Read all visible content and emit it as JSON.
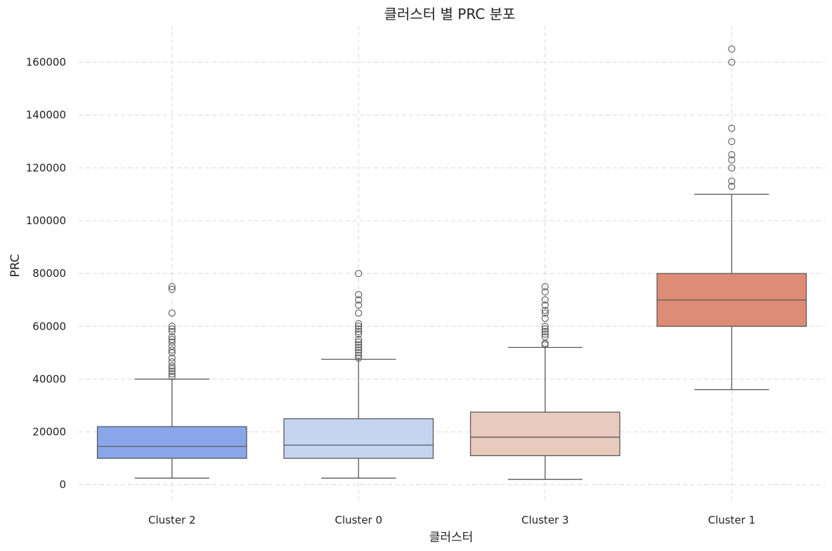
{
  "chart_data": {
    "type": "box",
    "title": "클러스터 별 PRC 분포",
    "xlabel": "클러스터",
    "ylabel": "PRC",
    "ylim": [
      -7000,
      174000
    ],
    "yticks": [
      0,
      20000,
      40000,
      60000,
      80000,
      100000,
      120000,
      140000,
      160000
    ],
    "ytick_labels": [
      "0",
      "20000",
      "40000",
      "60000",
      "80000",
      "100000",
      "120000",
      "140000",
      "160000"
    ],
    "grid": true,
    "categories": [
      "Cluster 2",
      "Cluster 0",
      "Cluster 3",
      "Cluster 1"
    ],
    "series": [
      {
        "category": "Cluster 2",
        "color": "#8aa6eb",
        "whisker_low": 2500,
        "q1": 10000,
        "median": 14500,
        "q3": 22000,
        "whisker_high": 40000,
        "outliers": [
          41000,
          42000,
          43000,
          44000,
          45000,
          46500,
          48000,
          50000,
          51000,
          52500,
          54000,
          55000,
          56000,
          58000,
          59000,
          60000,
          65000,
          74000,
          75000
        ]
      },
      {
        "category": "Cluster 0",
        "color": "#c5d5f0",
        "whisker_low": 2500,
        "q1": 10000,
        "median": 15000,
        "q3": 25000,
        "whisker_high": 47500,
        "outliers": [
          48000,
          49000,
          50000,
          51000,
          52000,
          53000,
          54000,
          55000,
          57000,
          58000,
          59000,
          60000,
          61000,
          65000,
          68000,
          70000,
          72000,
          80000
        ]
      },
      {
        "category": "Cluster 3",
        "color": "#e8cbbc",
        "whisker_low": 2000,
        "q1": 11000,
        "median": 18000,
        "q3": 27500,
        "whisker_high": 52000,
        "outliers": [
          53000,
          53500,
          56000,
          57000,
          58000,
          59000,
          60000,
          63000,
          65000,
          66000,
          68000,
          70000,
          73000,
          75000
        ]
      },
      {
        "category": "Cluster 1",
        "color": "#de8c75",
        "whisker_low": 36000,
        "q1": 60000,
        "median": 70000,
        "q3": 80000,
        "whisker_high": 110000,
        "outliers": [
          113000,
          115000,
          120000,
          123000,
          125000,
          130000,
          135000,
          160000,
          165000
        ]
      }
    ]
  }
}
